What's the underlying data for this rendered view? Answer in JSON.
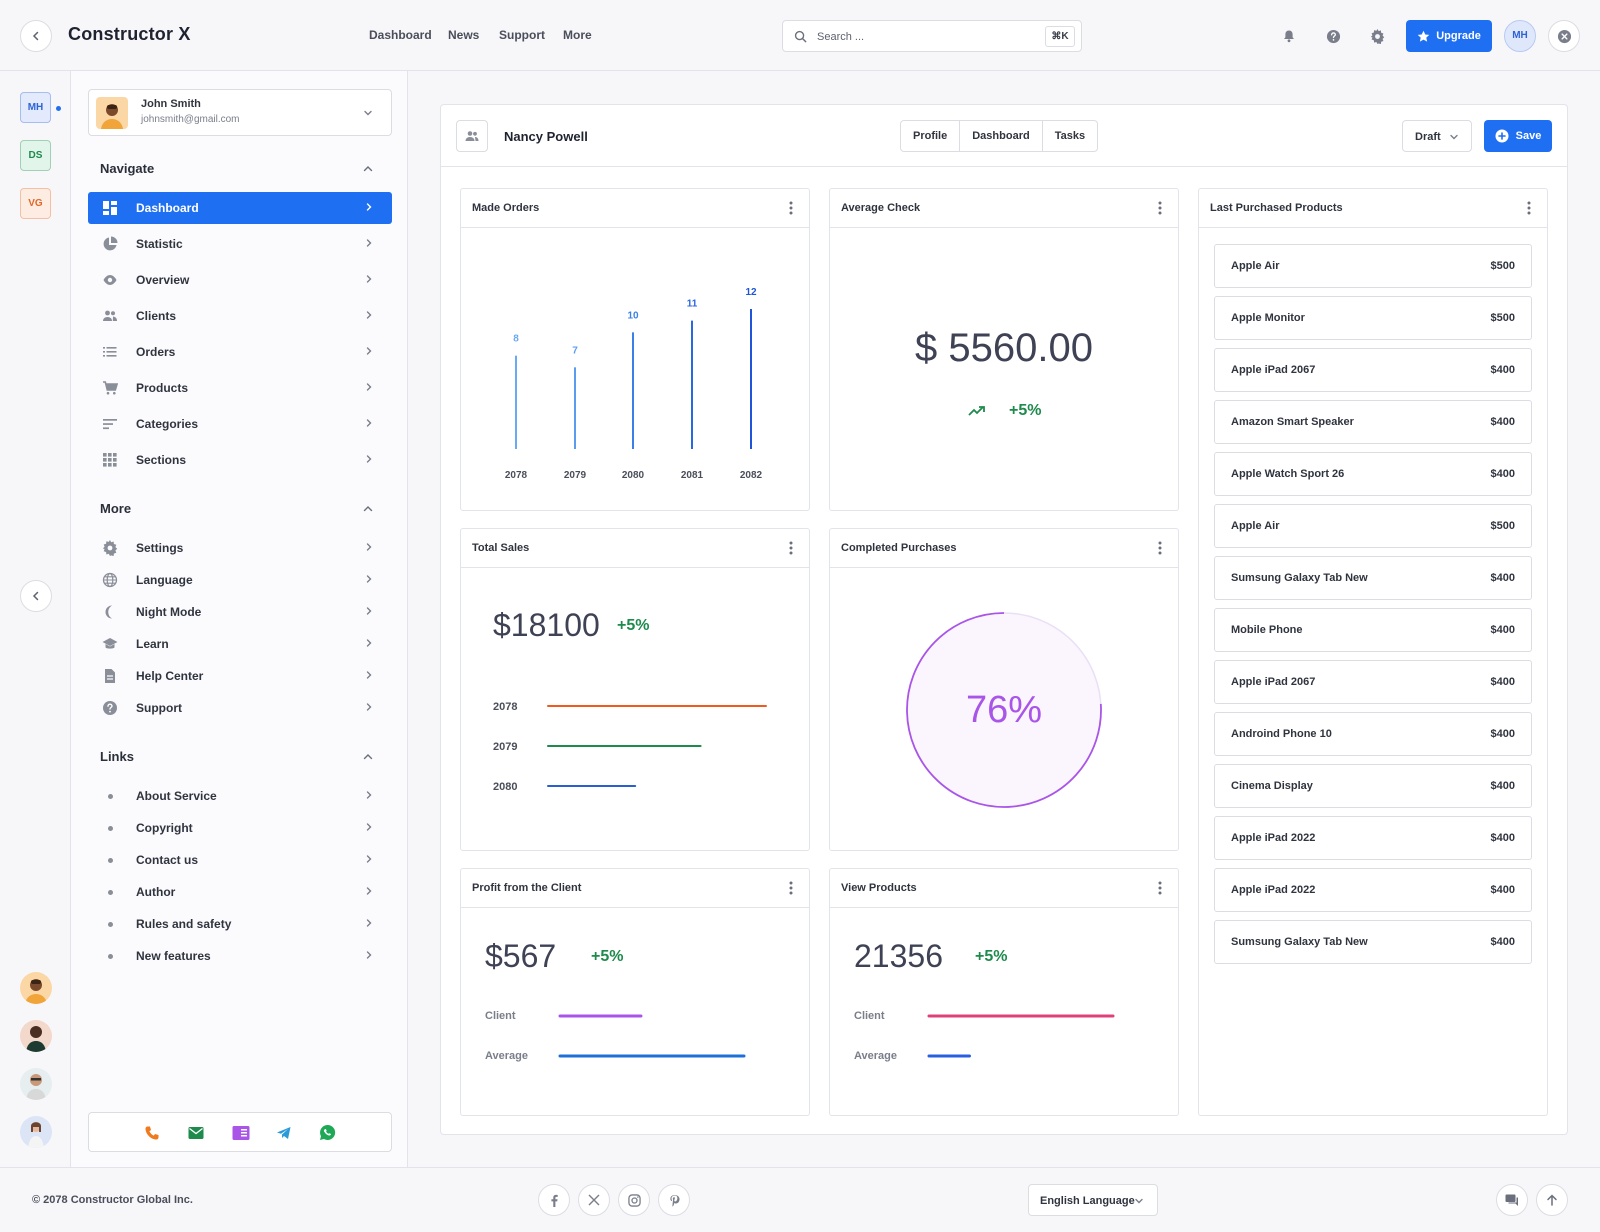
{
  "app": {
    "title": "Constructor X"
  },
  "topnav": [
    "Dashboard",
    "News",
    "Support",
    "More"
  ],
  "search": {
    "placeholder": "Search ...",
    "shortcut": "⌘K"
  },
  "header": {
    "upgrade_label": "Upgrade",
    "user_initials": "MH"
  },
  "workspaces": [
    {
      "initials": "MH",
      "color": "#2f63d4",
      "bg": "#e2eafc"
    },
    {
      "initials": "DS",
      "color": "#1e8a4c",
      "bg": "#e2f5ea"
    },
    {
      "initials": "VG",
      "color": "#e0682b",
      "bg": "#fdece2"
    }
  ],
  "user": {
    "name": "John Smith",
    "email": "johnsmith@gmail.com"
  },
  "sidebar": {
    "navigate_title": "Navigate",
    "navigate": [
      {
        "label": "Dashboard",
        "icon": "dashboard-icon"
      },
      {
        "label": "Statistic",
        "icon": "pie-chart-icon"
      },
      {
        "label": "Overview",
        "icon": "eye-icon"
      },
      {
        "label": "Clients",
        "icon": "people-icon"
      },
      {
        "label": "Orders",
        "icon": "list-icon"
      },
      {
        "label": "Products",
        "icon": "cart-icon"
      },
      {
        "label": "Categories",
        "icon": "sort-icon"
      },
      {
        "label": "Sections",
        "icon": "grid-icon"
      }
    ],
    "more_title": "More",
    "more": [
      {
        "label": "Settings",
        "icon": "gear-icon"
      },
      {
        "label": "Language",
        "icon": "globe-icon"
      },
      {
        "label": "Night Mode",
        "icon": "moon-icon"
      },
      {
        "label": "Learn",
        "icon": "graduation-cap-icon"
      },
      {
        "label": "Help Center",
        "icon": "document-icon"
      },
      {
        "label": "Support",
        "icon": "help-circle-icon"
      }
    ],
    "links_title": "Links",
    "links": [
      "About Service",
      "Copyright",
      "Contact us",
      "Author",
      "Rules and safety",
      "New features"
    ]
  },
  "page": {
    "person": "Nancy Powell",
    "tabs": [
      "Profile",
      "Dashboard",
      "Tasks"
    ],
    "status": "Draft",
    "save_label": "Save"
  },
  "cards": {
    "made_orders": "Made Orders",
    "average_check": "Average Check",
    "last_products": "Last Purchased Products",
    "total_sales": "Total Sales",
    "completed": "Completed Purchases",
    "profit": "Profit from the Client",
    "view_products": "View Products"
  },
  "average_check": {
    "value": "$ 5560.00",
    "change": "+5%"
  },
  "total_sales": {
    "value": "$18100",
    "change": "+5%"
  },
  "completed": {
    "value": "76%",
    "percent": 76
  },
  "profit": {
    "value": "$567",
    "change": "+5%",
    "client_label": "Client",
    "average_label": "Average"
  },
  "view_products": {
    "value": "21356",
    "change": "+5%",
    "client_label": "Client",
    "average_label": "Average"
  },
  "products": [
    {
      "name": "Apple Air",
      "price": "$500"
    },
    {
      "name": "Apple Monitor",
      "price": "$500"
    },
    {
      "name": "Apple iPad 2067",
      "price": "$400"
    },
    {
      "name": "Amazon Smart Speaker",
      "price": "$400"
    },
    {
      "name": "Apple Watch Sport 26",
      "price": "$400"
    },
    {
      "name": "Apple Air",
      "price": "$500"
    },
    {
      "name": "Sumsung Galaxy Tab New",
      "price": "$400"
    },
    {
      "name": "Mobile Phone",
      "price": "$400"
    },
    {
      "name": "Apple iPad 2067",
      "price": "$400"
    },
    {
      "name": "Androind Phone 10",
      "price": "$400"
    },
    {
      "name": "Cinema Display",
      "price": "$400"
    },
    {
      "name": "Apple iPad 2022",
      "price": "$400"
    },
    {
      "name": "Apple iPad 2022",
      "price": "$400"
    },
    {
      "name": "Sumsung Galaxy Tab New",
      "price": "$400"
    }
  ],
  "chart_data": [
    {
      "type": "bar",
      "title": "Made Orders",
      "categories": [
        "2078",
        "2079",
        "2080",
        "2081",
        "2082"
      ],
      "values": [
        8,
        7,
        10,
        11,
        12
      ],
      "colors": [
        "#6aaaf0",
        "#5a9cef",
        "#3b7fe8",
        "#2a67e0",
        "#1f55d8"
      ],
      "ylim": [
        0,
        12
      ]
    },
    {
      "type": "bar",
      "title": "Total Sales",
      "orientation": "horizontal",
      "categories": [
        "2078",
        "2079",
        "2080"
      ],
      "values": [
        100,
        70,
        40
      ],
      "colors": [
        "#f05a1e",
        "#1e8a4c",
        "#2a5fd0"
      ],
      "xlim": [
        0,
        100
      ]
    },
    {
      "type": "bar",
      "title": "Profit from the Client",
      "orientation": "horizontal",
      "categories": [
        "Client",
        "Average"
      ],
      "values": [
        44,
        100
      ],
      "colors": [
        "#a855e8",
        "#1f6fd8"
      ],
      "xlim": [
        0,
        100
      ]
    },
    {
      "type": "bar",
      "title": "View Products",
      "orientation": "horizontal",
      "categories": [
        "Client",
        "Average"
      ],
      "values": [
        100,
        22
      ],
      "colors": [
        "#e0407a",
        "#2a5fe0"
      ],
      "xlim": [
        0,
        100
      ]
    }
  ],
  "footer": {
    "copyright": "© 2078 Constructor Global Inc.",
    "language": "English Language",
    "socials": [
      "facebook-icon",
      "x-icon",
      "instagram-icon",
      "pinterest-icon"
    ]
  }
}
